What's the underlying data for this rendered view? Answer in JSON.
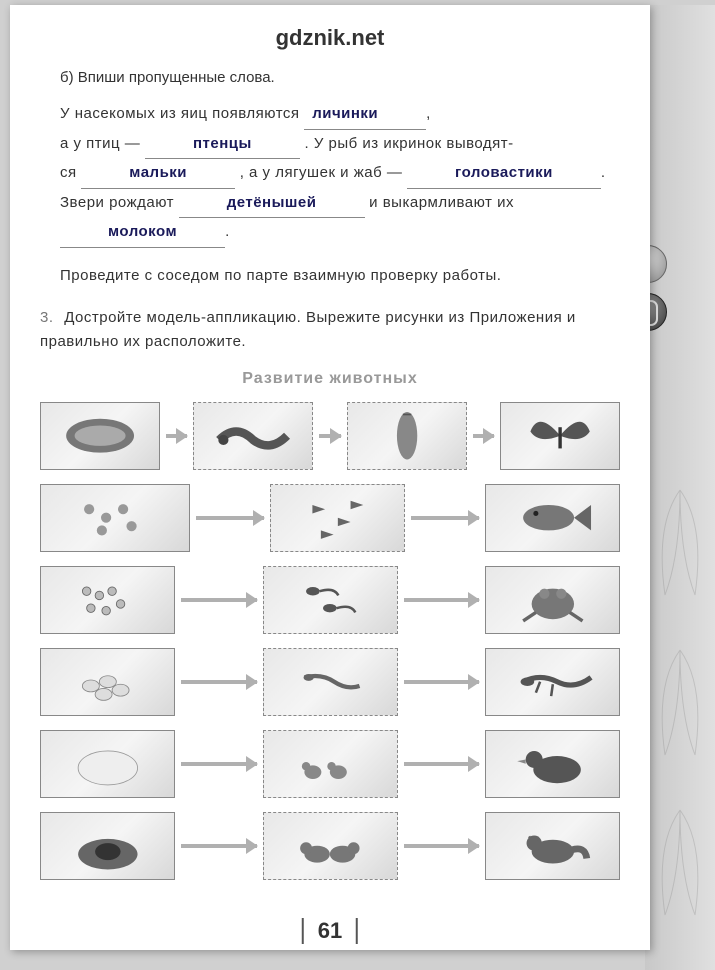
{
  "header": "gdznik.net",
  "task_b_label": "б) Впиши пропущенные слова.",
  "fill": {
    "line1_a": "У насекомых из яиц появляются",
    "ans1": "личинки",
    "line2_a": "а у птиц —",
    "ans2": "птенцы",
    "line2_b": ". У рыб из икринок выводят-",
    "line3_a": "ся",
    "ans3": "мальки",
    "line3_b": ", а у лягушек и жаб —",
    "ans4": "головастики",
    "line4_a": "Звери рождают",
    "ans5": "детёнышей",
    "line4_b": "и выкармливают их",
    "ans6": "молоком"
  },
  "check_text": "Проведите с соседом по парте взаимную проверку работы.",
  "task3_num": "3.",
  "task3_text": "Достройте модель-аппликацию. Вырежите рисунки из Приложения и правильно их расположите.",
  "diagram_title": "Развитие животных",
  "diagram": {
    "rows": [
      {
        "cells": 4,
        "widths": [
          120,
          120,
          120,
          120
        ],
        "dashed": [
          false,
          true,
          true,
          false
        ],
        "offset": 0,
        "labels": [
          "butterfly-eggs",
          "caterpillar",
          "pupa",
          "butterfly"
        ]
      },
      {
        "cells": 3,
        "widths": [
          150,
          135,
          135
        ],
        "dashed": [
          false,
          true,
          false
        ],
        "offset": 0,
        "labels": [
          "fish-eggs",
          "fry",
          "fish"
        ]
      },
      {
        "cells": 3,
        "widths": [
          135,
          135,
          135
        ],
        "dashed": [
          false,
          true,
          false
        ],
        "offset": 0,
        "labels": [
          "frog-eggs",
          "tadpoles",
          "frog"
        ]
      },
      {
        "cells": 3,
        "widths": [
          135,
          135,
          135
        ],
        "dashed": [
          false,
          true,
          false
        ],
        "offset": 0,
        "labels": [
          "lizard-eggs",
          "young-lizards",
          "lizard"
        ]
      },
      {
        "cells": 3,
        "widths": [
          135,
          135,
          135
        ],
        "dashed": [
          false,
          true,
          false
        ],
        "offset": 0,
        "labels": [
          "duck-eggs",
          "ducklings",
          "duck"
        ]
      },
      {
        "cells": 3,
        "widths": [
          135,
          135,
          135
        ],
        "dashed": [
          false,
          true,
          false
        ],
        "offset": 0,
        "labels": [
          "fox-den",
          "fox-cubs",
          "fox"
        ]
      }
    ]
  },
  "page_number": "61",
  "colors": {
    "answer_color": "#1a1a5a",
    "text_color": "#333333",
    "title_gray": "#999999",
    "arrow_color": "#b0b0b0",
    "cell_border": "#888888"
  }
}
